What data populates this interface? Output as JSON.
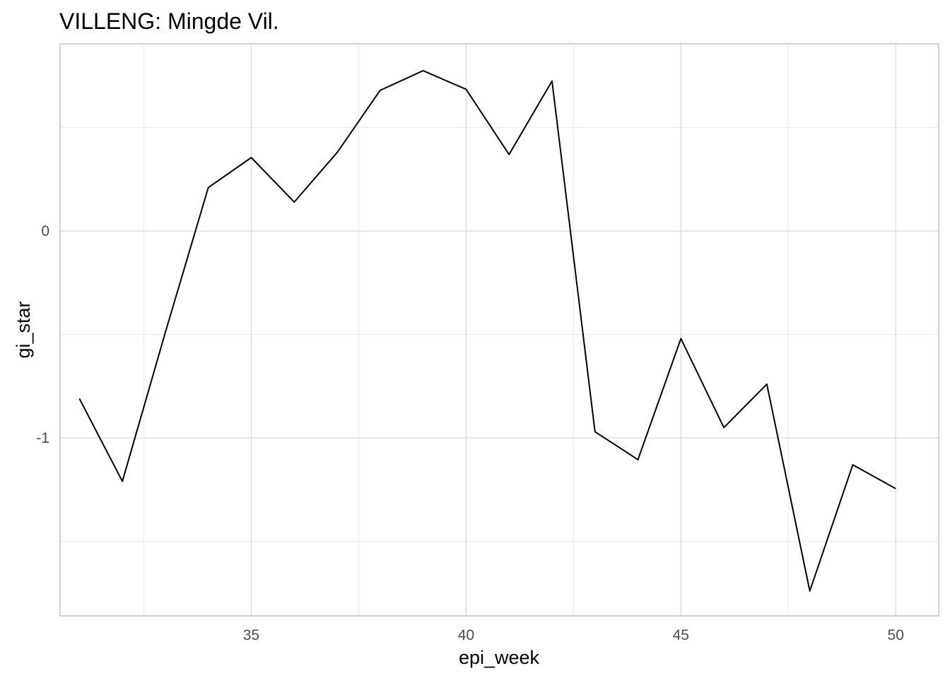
{
  "chart_data": {
    "type": "line",
    "title": "VILLENG: Mingde Vil.",
    "xlabel": "epi_week",
    "ylabel": "gi_star",
    "x": [
      31,
      32,
      33,
      34,
      35,
      36,
      37,
      38,
      39,
      40,
      41,
      42,
      43,
      44,
      45,
      46,
      47,
      48,
      49,
      50
    ],
    "series": [
      {
        "values": [
          -0.81,
          -1.21,
          -0.49,
          0.21,
          0.355,
          0.14,
          0.38,
          0.68,
          0.775,
          0.685,
          0.37,
          0.725,
          -0.97,
          -1.105,
          -0.52,
          -0.95,
          -0.74,
          -1.74,
          -1.13,
          -1.245
        ],
        "color": "#000000"
      }
    ],
    "xlim": [
      30.55,
      51.0
    ],
    "ylim": [
      -1.86,
      0.905
    ],
    "x_major_ticks": [
      35,
      40,
      45,
      50
    ],
    "x_minor_ticks": [
      32.5,
      37.5,
      42.5,
      47.5
    ],
    "y_major_ticks": [
      -1,
      0
    ],
    "y_minor_ticks": [
      -1.5,
      -0.5,
      0.5
    ],
    "x_tick_labels": [
      "35",
      "40",
      "45",
      "50"
    ],
    "y_tick_labels": [
      "-1",
      "0"
    ],
    "grid": true,
    "legend": "none"
  }
}
